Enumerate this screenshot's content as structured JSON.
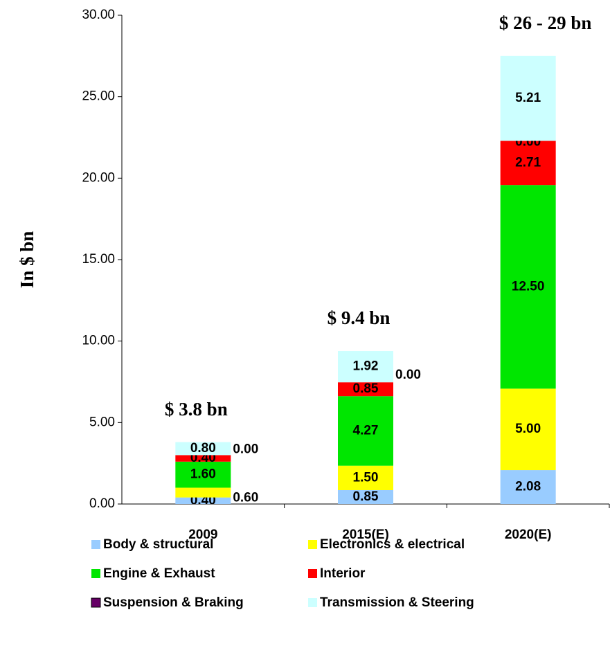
{
  "chart_data": {
    "type": "stacked_bar",
    "y_label": "In $ bn",
    "categories": [
      "2009",
      "2015(E)",
      "2020(E)"
    ],
    "annotations": [
      "$ 3.8 bn",
      "$ 9.4 bn",
      "$ 26 - 29 bn"
    ],
    "ylim": [
      0,
      30
    ],
    "yticks": [
      {
        "value": 0,
        "label": "0.00"
      },
      {
        "value": 5,
        "label": "5.00"
      },
      {
        "value": 10,
        "label": "10.00"
      },
      {
        "value": 15,
        "label": "15.00"
      },
      {
        "value": 20,
        "label": "20.00"
      },
      {
        "value": 25,
        "label": "25.00"
      },
      {
        "value": 30,
        "label": "30.00"
      }
    ],
    "series": [
      {
        "name": "Body & structural",
        "color": "#99ccff",
        "values": [
          0.4,
          0.85,
          2.08
        ],
        "value_labels": [
          "0.40",
          "0.85",
          "2.08"
        ]
      },
      {
        "name": "Electronics & electrical",
        "color": "#ffff00",
        "values": [
          0.6,
          1.5,
          5.0
        ],
        "value_labels": [
          "0.60",
          "1.50",
          "5.00"
        ]
      },
      {
        "name": "Engine & Exhaust",
        "color": "#00e600",
        "values": [
          1.6,
          4.27,
          12.5
        ],
        "value_labels": [
          "1.60",
          "4.27",
          "12.50"
        ]
      },
      {
        "name": "Interior",
        "color": "#ff0000",
        "values": [
          0.4,
          0.85,
          2.71
        ],
        "value_labels": [
          "0.40",
          "0.85",
          "2.71"
        ]
      },
      {
        "name": "Suspension & Braking",
        "color": "#660066",
        "values": [
          0,
          0,
          0
        ],
        "value_labels": [
          "0.00",
          "0.00",
          "0.00"
        ]
      },
      {
        "name": "Transmission & Steering",
        "color": "#ccffff",
        "values": [
          0.8,
          1.92,
          5.21
        ],
        "value_labels": [
          "0.80",
          "1.92",
          "5.21"
        ]
      }
    ]
  }
}
